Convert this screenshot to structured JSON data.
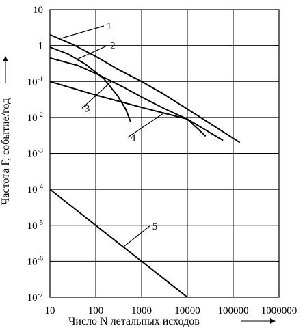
{
  "chart_data": {
    "type": "line",
    "title": "",
    "xlabel": "Число N летальных исходов",
    "ylabel": "Частота F, событие/год",
    "x_scale": "log",
    "y_scale": "log",
    "xlim": [
      10,
      1000000
    ],
    "ylim": [
      1e-07,
      10
    ],
    "grid": true,
    "legend": "none",
    "x_ticks": [
      {
        "value": 10,
        "label": "10"
      },
      {
        "value": 100,
        "label": "100"
      },
      {
        "value": 1000,
        "label": "1000"
      },
      {
        "value": 10000,
        "label": "10000"
      },
      {
        "value": 100000,
        "label": "100000"
      },
      {
        "value": 1000000,
        "label": "1000000"
      }
    ],
    "y_ticks": [
      {
        "value": 10,
        "base": "10",
        "exp": ""
      },
      {
        "value": 1,
        "base": "1",
        "exp": ""
      },
      {
        "value": 0.1,
        "base": "10",
        "exp": "-1"
      },
      {
        "value": 0.01,
        "base": "10",
        "exp": "-2"
      },
      {
        "value": 0.001,
        "base": "10",
        "exp": "-3"
      },
      {
        "value": 0.0001,
        "base": "10",
        "exp": "-4"
      },
      {
        "value": 1e-05,
        "base": "10",
        "exp": "-5"
      },
      {
        "value": 1e-06,
        "base": "10",
        "exp": "-6"
      },
      {
        "value": 1e-07,
        "base": "10",
        "exp": "-7"
      }
    ],
    "series": [
      {
        "name": "1",
        "x": [
          10,
          30,
          100,
          300,
          1000,
          3000,
          10000,
          30000,
          140000
        ],
        "y": [
          2,
          1.1,
          0.5,
          0.22,
          0.1,
          0.045,
          0.017,
          0.007,
          0.002
        ]
      },
      {
        "name": "2",
        "x": [
          10,
          25,
          60,
          150,
          300,
          450,
          580
        ],
        "y": [
          0.9,
          0.58,
          0.3,
          0.12,
          0.04,
          0.017,
          0.0075
        ]
      },
      {
        "name": "3",
        "x": [
          10,
          40,
          120,
          400,
          1000,
          3000,
          10000,
          25000
        ],
        "y": [
          0.45,
          0.28,
          0.15,
          0.07,
          0.037,
          0.018,
          0.009,
          0.003
        ]
      },
      {
        "name": "4",
        "x": [
          10,
          100,
          1000,
          10000,
          60000
        ],
        "y": [
          0.1,
          0.042,
          0.019,
          0.009,
          0.0023
        ]
      },
      {
        "name": "5",
        "x": [
          10,
          100,
          1000,
          10000
        ],
        "y": [
          0.0001,
          1e-05,
          1e-06,
          1e-07
        ]
      }
    ],
    "curve_labels": [
      {
        "text": "1",
        "series": 0,
        "anchor_x": 18,
        "anchor_y": 1.6,
        "label_x": 150,
        "label_y": 3.5
      },
      {
        "text": "2",
        "series": 1,
        "anchor_x": 40,
        "anchor_y": 0.42,
        "label_x": 180,
        "label_y": 1.0
      },
      {
        "text": "3",
        "series": 2,
        "anchor_x": 220,
        "anchor_y": 0.1,
        "label_x": 50,
        "label_y": 0.018
      },
      {
        "text": "4",
        "series": 3,
        "anchor_x": 3000,
        "anchor_y": 0.013,
        "label_x": 500,
        "label_y": 0.0028
      },
      {
        "text": "5",
        "series": 4,
        "anchor_x": 400,
        "anchor_y": 2.5e-06,
        "label_x": 1500,
        "label_y": 9.5e-06
      }
    ]
  }
}
